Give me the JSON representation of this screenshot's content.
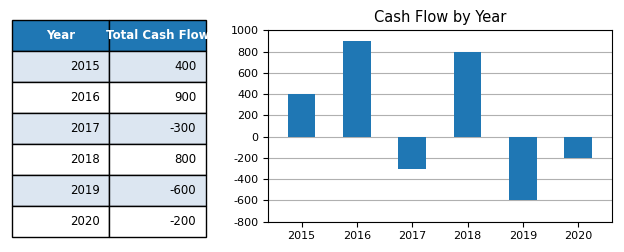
{
  "chart_data": [
    {
      "type": "table",
      "columns": [
        "Year",
        "Total Cash Flow"
      ],
      "categories": [
        "2015",
        "2016",
        "2017",
        "2018",
        "2019",
        "2020"
      ],
      "values": [
        400,
        900,
        -300,
        800,
        -600,
        -200
      ]
    },
    {
      "type": "bar",
      "title": "Cash Flow by Year",
      "categories": [
        "2015",
        "2016",
        "2017",
        "2018",
        "2019",
        "2020"
      ],
      "values": [
        400,
        900,
        -300,
        800,
        -600,
        -200
      ],
      "ylim": [
        -800,
        1000
      ],
      "yticks": [
        -800,
        -600,
        -400,
        -200,
        0,
        200,
        400,
        600,
        800,
        1000
      ],
      "grid": true
    }
  ]
}
